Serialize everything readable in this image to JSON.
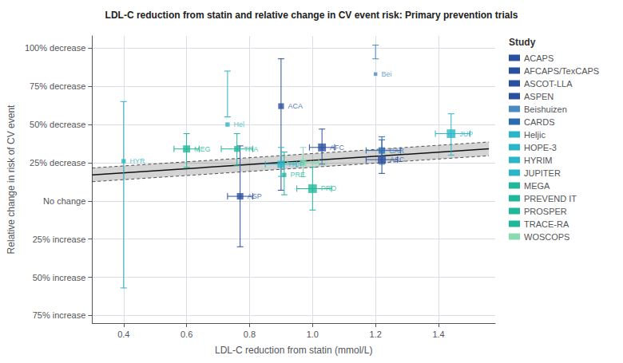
{
  "chart_data": {
    "type": "scatter",
    "title": "LDL-C reduction from statin and relative change in CV event risk: Primary prevention trials",
    "xlabel": "LDL-C reduction from statin (mmol/L)",
    "ylabel": "Relative change in risk of CV event",
    "xlim": [
      0.3,
      1.58
    ],
    "xticks": [
      0.4,
      0.6,
      0.8,
      {
        "value": 1.0,
        "label": "1.0"
      },
      1.2,
      1.4
    ],
    "ylim": [
      -0.8,
      1.08
    ],
    "yticks": [
      {
        "value": 1.0,
        "label": "100% decrease"
      },
      {
        "value": 0.75,
        "label": "75% decrease"
      },
      {
        "value": 0.5,
        "label": "50% decrease"
      },
      {
        "value": 0.25,
        "label": "25% decrease"
      },
      {
        "value": 0.0,
        "label": "No change"
      },
      {
        "value": -0.25,
        "label": "25% increase"
      },
      {
        "value": -0.5,
        "label": "50% increase"
      },
      {
        "value": -0.75,
        "label": "75% increase"
      }
    ],
    "grid": true,
    "legend": "right",
    "legend_title": "Study",
    "series": [
      {
        "name": "ACAPS",
        "label": "ACA",
        "color": "#2a4f9f",
        "marker": "square",
        "x": 0.9,
        "y": 0.62,
        "ylo": 0.07,
        "yhi": 0.93,
        "xlo": null,
        "xhi": null,
        "size": 8
      },
      {
        "name": "AFCAPS/TexCAPS",
        "label": "AFC",
        "color": "#2a4f9f",
        "marker": "square",
        "x": 1.03,
        "y": 0.35,
        "ylo": 0.24,
        "yhi": 0.47,
        "xlo": 0.99,
        "xhi": 1.07,
        "size": 11
      },
      {
        "name": "ASCOT-LLA",
        "label": "ASC",
        "color": "#2a4f9f",
        "marker": "square",
        "x": 1.22,
        "y": 0.27,
        "ylo": 0.18,
        "yhi": 0.4,
        "xlo": 1.17,
        "xhi": 1.27,
        "size": 11
      },
      {
        "name": "ASPEN",
        "label": "ASP",
        "color": "#2a4f9f",
        "marker": "square",
        "x": 0.77,
        "y": 0.03,
        "ylo": -0.3,
        "yhi": 0.36,
        "xlo": 0.73,
        "xhi": 0.81,
        "size": 9
      },
      {
        "name": "Beishuizen",
        "label": "Bei",
        "color": "#4a8bc4",
        "marker": "square",
        "x": 1.2,
        "y": 0.83,
        "ylo": 0.93,
        "yhi": 1.02,
        "xlo": null,
        "xhi": null,
        "size": 5
      },
      {
        "name": "CARDS",
        "label": "CAR",
        "color": "#2a6cb0",
        "marker": "square",
        "x": 1.22,
        "y": 0.33,
        "ylo": 0.24,
        "yhi": 0.42,
        "xlo": 1.17,
        "xhi": 1.28,
        "size": 9
      },
      {
        "name": "Heljic",
        "label": "Hel",
        "color": "#2ab5c8",
        "marker": "square",
        "x": 0.73,
        "y": 0.5,
        "ylo": 0.55,
        "yhi": 0.85,
        "xlo": null,
        "xhi": null,
        "size": 6
      },
      {
        "name": "HOPE-3",
        "label": "HOP",
        "color": "#2ab5c8",
        "marker": "square",
        "x": 0.9,
        "y": 0.24,
        "ylo": 0.16,
        "yhi": 0.35,
        "xlo": 0.85,
        "xhi": 0.95,
        "size": 10
      },
      {
        "name": "HYRIM",
        "label": "HYR",
        "color": "#2ab5c8",
        "marker": "square",
        "x": 0.4,
        "y": 0.26,
        "ylo": -0.57,
        "yhi": 0.65,
        "xlo": null,
        "xhi": null,
        "size": 6
      },
      {
        "name": "JUPITER",
        "label": "JUP",
        "color": "#2ab5c8",
        "marker": "square",
        "x": 1.44,
        "y": 0.44,
        "ylo": 0.3,
        "yhi": 0.57,
        "xlo": 1.39,
        "xhi": 1.5,
        "size": 12
      },
      {
        "name": "MEGA",
        "label": "MEG",
        "color": "#20b89a",
        "marker": "square",
        "x": 0.6,
        "y": 0.34,
        "ylo": 0.22,
        "yhi": 0.44,
        "xlo": 0.56,
        "xhi": 0.64,
        "size": 10
      },
      {
        "name": "PREVEND IT",
        "label": "PRE",
        "color": "#20b89a",
        "marker": "square",
        "x": 0.91,
        "y": 0.17,
        "ylo": 0.04,
        "yhi": 0.32,
        "xlo": null,
        "xhi": null,
        "size": 6
      },
      {
        "name": "PROSPER",
        "label": "PRO",
        "color": "#20b89a",
        "marker": "square",
        "x": 1.0,
        "y": 0.08,
        "ylo": -0.06,
        "yhi": 0.22,
        "xlo": 0.95,
        "xhi": 1.06,
        "size": 12
      },
      {
        "name": "TRACE-RA",
        "label": "TRA",
        "color": "#20b89a",
        "marker": "square",
        "x": 0.76,
        "y": 0.34,
        "ylo": 0.23,
        "yhi": 0.44,
        "xlo": 0.71,
        "xhi": 0.81,
        "size": 8
      },
      {
        "name": "WOSCOPS",
        "label": "WOS",
        "color": "#8adab2",
        "marker": "square",
        "x": 0.97,
        "y": 0.25,
        "ylo": 0.16,
        "yhi": 0.35,
        "xlo": 0.92,
        "xhi": 1.02,
        "size": 9
      }
    ],
    "fit": {
      "type": "line",
      "color": "#111111",
      "x": [
        0.3,
        1.56
      ],
      "values": [
        0.1705,
        0.3406
      ],
      "upper": [
        0.2155,
        0.3856
      ],
      "lower": [
        0.1255,
        0.2956
      ]
    }
  }
}
